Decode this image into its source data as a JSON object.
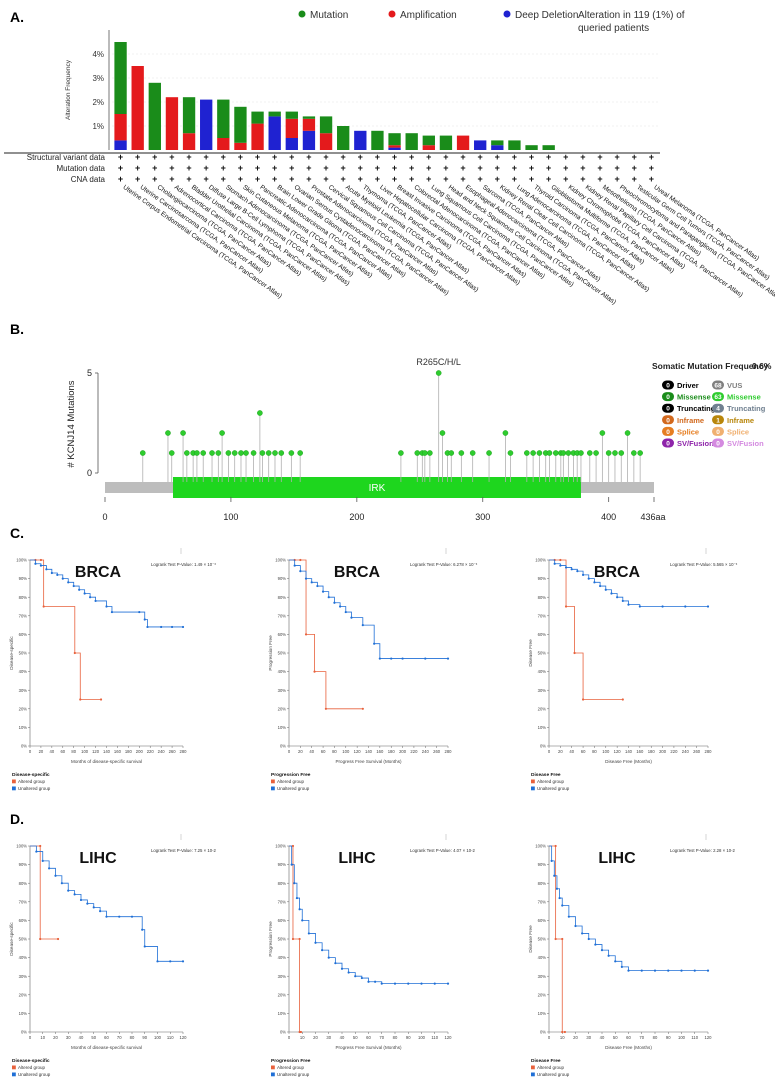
{
  "panels": {
    "a": "A.",
    "b": "B.",
    "c": "C.",
    "d": "D."
  },
  "chart_data": [
    {
      "type": "bar",
      "panel": "A",
      "stacked": true,
      "title": "",
      "ylabel": "Alteration Frequency",
      "ylim": [
        0,
        5
      ],
      "y_ticks": [
        "1%",
        "2%",
        "3%",
        "4%"
      ],
      "legend": [
        {
          "label": "Mutation",
          "color": "#1a8c1a"
        },
        {
          "label": "Amplification",
          "color": "#e41a1c"
        },
        {
          "label": "Deep Deletion",
          "color": "#1f22d1"
        }
      ],
      "summary_line1": "Alteration  in 119 (1%) of",
      "summary_line2": "queried patients",
      "row_labels": [
        "Structural variant data",
        "Mutation data",
        "CNA data"
      ],
      "row_marker": "+",
      "categories": [
        "Uterine Corpus Endometrial Carcinoma (TCGA, PanCancer Atlas)",
        "Uterine Carcinosarcoma (TCGA, PanCancer Atlas)",
        "Cholangiocarcinoma (TCGA, PanCancer Atlas)",
        "Adrenocortical Carcinoma (TCGA, PanCancer Atlas)",
        "Bladder Urothelial Carcinoma (TCGA, PanCancer Atlas)",
        "Diffuse Large B-Cell Lymphoma (TCGA, PanCancer Atlas)",
        "Stomach Adenocarcinoma (TCGA, PanCancer Atlas)",
        "Skin Cutaneous Melanoma (TCGA, PanCancer Atlas)",
        "Pancreatic Adenocarcinoma (TCGA, PanCancer Atlas)",
        "Brain Lower Grade Glioma (TCGA, PanCancer Atlas)",
        "Ovarian Serous Cystadenocarcinoma (TCGA, PanCancer Atlas)",
        "Prostate Adenocarcinoma (TCGA, PanCancer Atlas)",
        "Cervical Squamous Cell Carcinoma (TCGA, PanCancer Atlas)",
        "Acute Myeloid Leukemia (TCGA, PanCancer Atlas)",
        "Thymoma (TCGA, PanCancer Atlas)",
        "Liver Hepatocellular Carcinoma (TCGA, PanCancer Atlas)",
        "Breast Invasive Carcinoma (TCGA, PanCancer Atlas)",
        "Colorectal Adenocarcinoma (TCGA, PanCancer Atlas)",
        "Lung Squamous Cell Carcinoma (TCGA, PanCancer Atlas)",
        "Head and Neck Squamous Cell Carcinoma (TCGA, PanCancer Atlas)",
        "Esophageal Adenocarcinoma (TCGA, PanCancer Atlas)",
        "Sarcoma (TCGA, PanCancer Atlas)",
        "Kidney Renal Clear Cell Carcinoma (TCGA, PanCancer Atlas)",
        "Lung Adenocarcinoma (TCGA, PanCancer Atlas)",
        "Thyroid Carcinoma (TCGA, PanCancer Atlas)",
        "Glioblastoma Multiforme (TCGA, PanCancer Atlas)",
        "Kidney Chromophobe (TCGA, PanCancer Atlas)",
        "Kidney Renal Papillary Cell Carcinoma (TCGA, PanCancer Atlas)",
        "Mesothelioma (TCGA, PanCancer Atlas)",
        "Pheochromocytoma and Paraganglioma (TCGA, PanCancer Atlas)",
        "Testicular Germ Cell Tumors (TCGA, PanCancer Atlas)",
        "Uveal Melanoma (TCGA, PanCancer Atlas)"
      ],
      "series": [
        {
          "name": "Deep Deletion",
          "color": "#1f22d1",
          "values": [
            0.4,
            0,
            0,
            0,
            0,
            2.1,
            0,
            0,
            0,
            1.4,
            0.5,
            0.8,
            0,
            0,
            0.8,
            0,
            0.1,
            0,
            0,
            0,
            0,
            0.4,
            0.2,
            0,
            0,
            0,
            0,
            0,
            0,
            0,
            0,
            0
          ]
        },
        {
          "name": "Amplification",
          "color": "#e41a1c",
          "values": [
            1.1,
            3.5,
            0,
            2.2,
            0.7,
            0,
            0.5,
            0.3,
            1.1,
            0,
            0.8,
            0.5,
            0.7,
            0,
            0,
            0,
            0.1,
            0,
            0.2,
            0,
            0.6,
            0,
            0,
            0,
            0,
            0,
            0,
            0,
            0,
            0,
            0,
            0
          ]
        },
        {
          "name": "Mutation",
          "color": "#1a8c1a",
          "values": [
            3.0,
            0,
            2.8,
            0,
            1.5,
            0,
            1.6,
            1.5,
            0.5,
            0.2,
            0.3,
            0.1,
            0.7,
            1.0,
            0,
            0.8,
            0.5,
            0.7,
            0.4,
            0.6,
            0,
            0,
            0.2,
            0.4,
            0.2,
            0.2,
            0,
            0,
            0,
            0,
            0,
            0
          ]
        }
      ]
    },
    {
      "type": "lollipop",
      "panel": "B",
      "ylabel": "# KCNJ14 Mutations",
      "y_ticks": [
        0,
        5
      ],
      "x_ticks": [
        0,
        100,
        200,
        300,
        400
      ],
      "x_end_label": "436aa",
      "length": 436,
      "domain": {
        "label": "IRK",
        "start": 54,
        "end": 378
      },
      "hotspot_label": "R265C/H/L",
      "summary_title": "Somatic Mutation Frequency",
      "summary_value": "0.6%",
      "legend": [
        {
          "count": "0",
          "label": "Driver",
          "color": "#000000"
        },
        {
          "count": "68",
          "label": "VUS",
          "color": "#808080"
        },
        {
          "count": "0",
          "label": "Missense",
          "color": "#1a8c1a"
        },
        {
          "count": "63",
          "label": "Missense",
          "color": "#2ecc2e"
        },
        {
          "count": "0",
          "label": "Truncating",
          "color": "#000000"
        },
        {
          "count": "4",
          "label": "Truncating",
          "color": "#708090"
        },
        {
          "count": "0",
          "label": "Inframe",
          "color": "#d2691e"
        },
        {
          "count": "1",
          "label": "Inframe",
          "color": "#b8860b"
        },
        {
          "count": "0",
          "label": "Splice",
          "color": "#e67e22"
        },
        {
          "count": "0",
          "label": "Splice",
          "color": "#f0b070"
        },
        {
          "count": "0",
          "label": "SV/Fusion",
          "color": "#8e24aa"
        },
        {
          "count": "0",
          "label": "SV/Fusion",
          "color": "#d48ae0"
        }
      ],
      "positions": [
        30,
        50,
        53,
        62,
        65,
        70,
        73,
        78,
        85,
        90,
        93,
        98,
        103,
        108,
        112,
        118,
        123,
        125,
        130,
        135,
        140,
        148,
        155,
        235,
        248,
        252,
        254,
        258,
        265,
        268,
        272,
        275,
        283,
        292,
        305,
        318,
        322,
        335,
        340,
        345,
        350,
        353,
        358,
        362,
        364,
        368,
        372,
        375,
        378,
        385,
        390,
        395,
        400,
        405,
        410,
        415,
        420,
        425
      ],
      "counts": [
        1,
        2,
        1,
        2,
        1,
        1,
        1,
        1,
        1,
        1,
        2,
        1,
        1,
        1,
        1,
        1,
        3,
        1,
        1,
        1,
        1,
        1,
        1,
        1,
        1,
        1,
        1,
        1,
        5,
        2,
        1,
        1,
        1,
        1,
        1,
        2,
        1,
        1,
        1,
        1,
        1,
        1,
        1,
        1,
        1,
        1,
        1,
        1,
        1,
        1,
        1,
        2,
        1,
        1,
        1,
        2,
        1,
        1
      ]
    },
    {
      "type": "line",
      "panel": "C",
      "title": "BRCA",
      "pvalue_text": "Logrank Test P-Value: 1.49 × 10⁻³",
      "xlabel": "Months of disease-specific survival",
      "ylabel": "Disease-specific",
      "xlim": [
        0,
        280
      ],
      "x_ticks": [
        0,
        20,
        40,
        60,
        80,
        100,
        120,
        140,
        160,
        180,
        200,
        220,
        240,
        260,
        280
      ],
      "ylim": [
        0,
        100
      ],
      "y_ticks": [
        "0%",
        "10%",
        "20%",
        "30%",
        "40%",
        "50%",
        "60%",
        "70%",
        "80%",
        "90%",
        "100%"
      ],
      "legend_title": "Disease-specific",
      "legend": [
        "Altered group",
        "Unaltered group"
      ],
      "series": [
        {
          "name": "Altered group",
          "color": "#e8613c",
          "x": [
            0,
            10,
            20,
            25,
            82,
            92,
            130
          ],
          "y": [
            100,
            100,
            100,
            75,
            50,
            25,
            25
          ]
        },
        {
          "name": "Unaltered group",
          "color": "#1f6fd6",
          "x": [
            0,
            10,
            20,
            30,
            40,
            50,
            60,
            70,
            80,
            90,
            100,
            110,
            120,
            140,
            150,
            200,
            210,
            215,
            240,
            260,
            280
          ],
          "y": [
            100,
            98,
            97,
            95,
            93,
            92,
            90,
            88,
            86,
            84,
            82,
            80,
            78,
            75,
            72,
            72,
            68,
            64,
            64,
            64,
            64
          ]
        }
      ]
    },
    {
      "type": "line",
      "panel": "C",
      "title": "BRCA",
      "pvalue_text": "Logrank Test P-Value: 6.278 × 10⁻³",
      "xlabel": "Progress Free Survival (Months)",
      "ylabel": "Progression Free",
      "xlim": [
        0,
        280
      ],
      "x_ticks": [
        0,
        20,
        40,
        60,
        80,
        100,
        120,
        140,
        160,
        180,
        200,
        220,
        240,
        260,
        280
      ],
      "ylim": [
        0,
        100
      ],
      "y_ticks": [
        "0%",
        "10%",
        "20%",
        "30%",
        "40%",
        "50%",
        "60%",
        "70%",
        "80%",
        "90%",
        "100%"
      ],
      "legend_title": "Progression Free",
      "legend": [
        "Altered group",
        "Unaltered group"
      ],
      "series": [
        {
          "name": "Altered group",
          "color": "#e8613c",
          "x": [
            0,
            10,
            20,
            30,
            45,
            65,
            130
          ],
          "y": [
            100,
            100,
            100,
            60,
            40,
            20,
            20
          ]
        },
        {
          "name": "Unaltered group",
          "color": "#1f6fd6",
          "x": [
            0,
            10,
            20,
            30,
            40,
            50,
            60,
            70,
            80,
            90,
            100,
            110,
            130,
            150,
            160,
            180,
            200,
            240,
            280
          ],
          "y": [
            100,
            97,
            94,
            90,
            88,
            86,
            83,
            80,
            77,
            75,
            72,
            69,
            65,
            55,
            47,
            47,
            47,
            47,
            47
          ]
        }
      ]
    },
    {
      "type": "line",
      "panel": "C",
      "title": "BRCA",
      "pvalue_text": "Logrank Test P-Value: 5.565 × 10⁻³",
      "xlabel": "Disease Free (Months)",
      "ylabel": "Disease Free",
      "xlim": [
        0,
        280
      ],
      "x_ticks": [
        0,
        20,
        40,
        60,
        80,
        100,
        120,
        140,
        160,
        180,
        200,
        220,
        240,
        260,
        280
      ],
      "ylim": [
        0,
        100
      ],
      "y_ticks": [
        "0%",
        "10%",
        "20%",
        "30%",
        "40%",
        "50%",
        "60%",
        "70%",
        "80%",
        "90%",
        "100%"
      ],
      "legend_title": "Disease Free",
      "legend": [
        "Altered group",
        "Unaltered group"
      ],
      "series": [
        {
          "name": "Altered group",
          "color": "#e8613c",
          "x": [
            0,
            10,
            20,
            30,
            45,
            60,
            130
          ],
          "y": [
            100,
            100,
            100,
            75,
            50,
            25,
            25
          ]
        },
        {
          "name": "Unaltered group",
          "color": "#1f6fd6",
          "x": [
            0,
            10,
            20,
            30,
            40,
            50,
            60,
            70,
            80,
            90,
            100,
            110,
            120,
            130,
            140,
            160,
            200,
            240,
            280
          ],
          "y": [
            100,
            98,
            97,
            96,
            95,
            94,
            92,
            90,
            88,
            86,
            84,
            82,
            80,
            78,
            76,
            75,
            75,
            75,
            75
          ]
        }
      ]
    },
    {
      "type": "line",
      "panel": "D",
      "title": "LIHC",
      "pvalue_text": "Logrank Test P-Value: 7.25 × 10-2",
      "xlabel": "Months of disease-specific survival",
      "ylabel": "Disease-specific",
      "xlim": [
        0,
        120
      ],
      "x_ticks": [
        0,
        10,
        20,
        30,
        40,
        50,
        60,
        70,
        80,
        90,
        100,
        110,
        120
      ],
      "ylim": [
        0,
        100
      ],
      "y_ticks": [
        "0%",
        "10%",
        "20%",
        "30%",
        "40%",
        "50%",
        "60%",
        "70%",
        "80%",
        "90%",
        "100%"
      ],
      "legend_title": "Disease-specific",
      "legend": [
        "Altered group",
        "Unaltered group"
      ],
      "series": [
        {
          "name": "Altered group",
          "color": "#e8613c",
          "x": [
            0,
            8,
            8,
            22
          ],
          "y": [
            100,
            100,
            50,
            50
          ]
        },
        {
          "name": "Unaltered group",
          "color": "#1f6fd6",
          "x": [
            0,
            5,
            10,
            15,
            20,
            25,
            30,
            35,
            40,
            45,
            50,
            55,
            60,
            70,
            80,
            88,
            90,
            100,
            110,
            120
          ],
          "y": [
            100,
            97,
            92,
            88,
            84,
            80,
            76,
            74,
            71,
            69,
            67,
            65,
            62,
            62,
            62,
            55,
            46,
            38,
            38,
            38
          ]
        }
      ]
    },
    {
      "type": "line",
      "panel": "D",
      "title": "LIHC",
      "pvalue_text": "Logrank Test P-Value: 4.07 × 10-2",
      "xlabel": "Progress Free Survival (Months)",
      "ylabel": "Progression Free",
      "xlim": [
        0,
        120
      ],
      "x_ticks": [
        0,
        10,
        20,
        30,
        40,
        50,
        60,
        70,
        80,
        90,
        100,
        110,
        120
      ],
      "ylim": [
        0,
        100
      ],
      "y_ticks": [
        "0%",
        "10%",
        "20%",
        "30%",
        "40%",
        "50%",
        "60%",
        "70%",
        "80%",
        "90%",
        "100%"
      ],
      "legend_title": "Progression Free",
      "legend": [
        "Altered group",
        "Unaltered group"
      ],
      "series": [
        {
          "name": "Altered group",
          "color": "#e8613c",
          "x": [
            0,
            3,
            3,
            8,
            8,
            9
          ],
          "y": [
            100,
            100,
            50,
            50,
            0,
            0
          ]
        },
        {
          "name": "Unaltered group",
          "color": "#1f6fd6",
          "x": [
            0,
            2,
            4,
            6,
            8,
            10,
            15,
            20,
            25,
            30,
            35,
            40,
            45,
            50,
            55,
            60,
            65,
            70,
            80,
            90,
            100,
            110,
            120
          ],
          "y": [
            100,
            90,
            80,
            72,
            66,
            60,
            53,
            48,
            44,
            40,
            37,
            34,
            32,
            30,
            29,
            27,
            27,
            26,
            26,
            26,
            26,
            26,
            26
          ]
        }
      ]
    },
    {
      "type": "line",
      "panel": "D",
      "title": "LIHC",
      "pvalue_text": "Logrank Test P-Value: 2.28 × 10-2",
      "xlabel": "Disease Free (Months)",
      "ylabel": "Disease Free",
      "xlim": [
        0,
        120
      ],
      "x_ticks": [
        0,
        10,
        20,
        30,
        40,
        50,
        60,
        70,
        80,
        90,
        100,
        110,
        120
      ],
      "ylim": [
        0,
        100
      ],
      "y_ticks": [
        "0%",
        "10%",
        "20%",
        "30%",
        "40%",
        "50%",
        "60%",
        "70%",
        "80%",
        "90%",
        "100%"
      ],
      "legend_title": "Disease Free",
      "legend": [
        "Altered group",
        "Unaltered group"
      ],
      "series": [
        {
          "name": "Altered group",
          "color": "#e8613c",
          "x": [
            0,
            5,
            5,
            10,
            10,
            12
          ],
          "y": [
            100,
            100,
            50,
            50,
            0,
            0
          ]
        },
        {
          "name": "Unaltered group",
          "color": "#1f6fd6",
          "x": [
            0,
            2,
            4,
            6,
            8,
            10,
            15,
            20,
            25,
            30,
            35,
            40,
            45,
            50,
            55,
            60,
            70,
            80,
            90,
            100,
            110,
            120
          ],
          "y": [
            100,
            92,
            84,
            77,
            72,
            68,
            62,
            57,
            53,
            50,
            47,
            44,
            41,
            38,
            35,
            33,
            33,
            33,
            33,
            33,
            33,
            33
          ]
        }
      ]
    }
  ]
}
